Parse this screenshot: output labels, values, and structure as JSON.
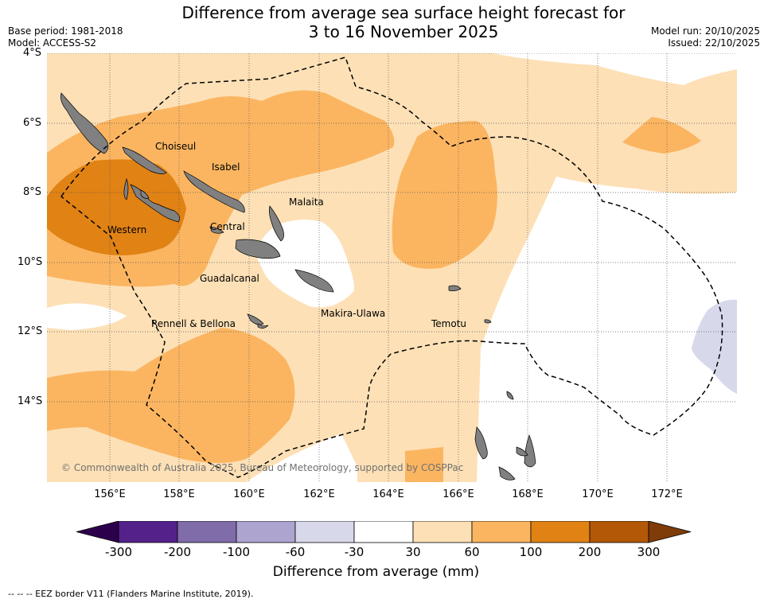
{
  "title_line1": "Difference from average sea surface height forecast for",
  "title_line2": "3 to 16 November 2025",
  "meta": {
    "base_period": "Base period: 1981-2018",
    "model": "Model: ACCESS-S2",
    "model_run": "Model run: 20/10/2025",
    "issued": "Issued: 22/10/2025"
  },
  "axes": {
    "lat_labels": [
      "4°S",
      "6°S",
      "8°S",
      "10°S",
      "12°S",
      "14°S"
    ],
    "lon_labels": [
      "156°E",
      "158°E",
      "160°E",
      "162°E",
      "164°E",
      "166°E",
      "168°E",
      "170°E",
      "172°E"
    ]
  },
  "regions": {
    "choiseul": "Choiseul",
    "isabel": "Isabel",
    "malaita": "Malaita",
    "western": "Western",
    "central": "Central",
    "guadalcanal": "Guadalcanal",
    "makira_ulawa": "Makira-Ulawa",
    "rennell_bellona": "Rennell & Bellona",
    "temotu": "Temotu"
  },
  "copyright": "© Commonwealth of Australia 2025, Bureau of Meteorology, supported by COSPPac",
  "colorbar": {
    "title": "Difference from average (mm)",
    "ticks": [
      "-300",
      "-200",
      "-100",
      "-60",
      "-30",
      "30",
      "60",
      "100",
      "200",
      "300"
    ],
    "colors": [
      "#54218a",
      "#7f6ca9",
      "#ada5d0",
      "#d8d8eb",
      "#ffffff",
      "#fde0b6",
      "#fbb561",
      "#e08214",
      "#b35806"
    ],
    "under_color": "#2d004b",
    "over_color": "#7f3b08"
  },
  "footnote": "--  --  -- EEZ border V11 (Flanders Marine Institute, 2019)."
}
